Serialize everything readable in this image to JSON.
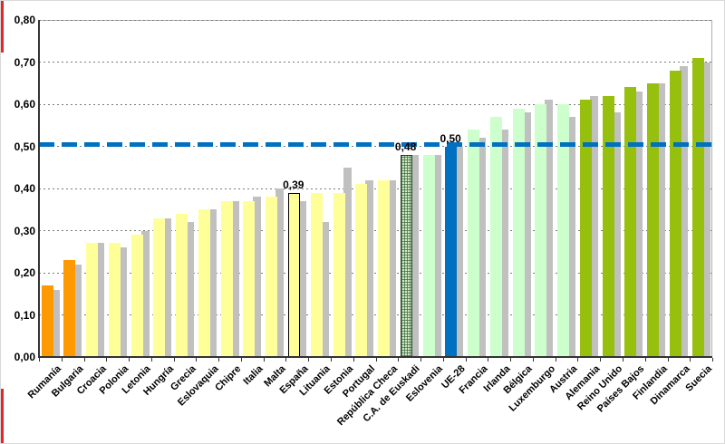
{
  "chart_data": {
    "type": "bar",
    "title": "",
    "xlabel": "",
    "ylabel": "",
    "ylim": [
      0,
      0.8
    ],
    "ytick_labels": [
      "0,00",
      "0,10",
      "0,20",
      "0,30",
      "0,40",
      "0,50",
      "0,60",
      "0,70",
      "0,80"
    ],
    "grid": "horizontal-dotted",
    "legend": "none",
    "categories": [
      "Rumanía",
      "Bulgaria",
      "Croacia",
      "Polonia",
      "Letonia",
      "Hungría",
      "Grecia",
      "Eslovaquia",
      "Chipre",
      "Italia",
      "Malta",
      "España",
      "Lituania",
      "Estonia",
      "Portugal",
      "República Checa",
      "C.A. de Euskadi",
      "Eslovenia",
      "UE-28",
      "Francia",
      "Irlanda",
      "Bélgica",
      "Luxemburgo",
      "Austria",
      "Alemania",
      "Reino Unido",
      "Países Bajos",
      "Finlandia",
      "Dinamarca",
      "Suecia"
    ],
    "series": [
      {
        "name": "principal",
        "values": [
          0.17,
          0.23,
          0.27,
          0.27,
          0.29,
          0.33,
          0.34,
          0.35,
          0.37,
          0.37,
          0.38,
          0.39,
          0.39,
          0.39,
          0.41,
          0.42,
          0.48,
          0.48,
          0.5,
          0.54,
          0.57,
          0.59,
          0.6,
          0.6,
          0.61,
          0.62,
          0.64,
          0.65,
          0.68,
          0.71
        ]
      },
      {
        "name": "secundaria-gris",
        "values": [
          0.16,
          0.22,
          0.27,
          0.26,
          0.3,
          0.33,
          0.32,
          0.35,
          0.37,
          0.38,
          0.4,
          0.37,
          0.32,
          0.45,
          0.42,
          0.42,
          0.48,
          0.48,
          0.5,
          0.52,
          0.54,
          0.58,
          0.61,
          0.57,
          0.62,
          0.58,
          0.63,
          0.65,
          0.69,
          0.7
        ]
      }
    ],
    "bar_styles": [
      "orange",
      "orange",
      "yellow",
      "yellow",
      "yellow",
      "yellow",
      "yellow",
      "yellow",
      "yellow",
      "yellow",
      "yellow",
      "outlined",
      "yellow",
      "yellow",
      "yellow",
      "yellow",
      "hatched",
      "mint",
      "blue",
      "mint",
      "mint",
      "mint",
      "mint",
      "mint",
      "green",
      "green",
      "green",
      "green",
      "green",
      "green"
    ],
    "annotations": [
      {
        "category_index": 11,
        "text": "0,39"
      },
      {
        "category_index": 16,
        "text": "0,48"
      },
      {
        "category_index": 18,
        "text": "0,50"
      }
    ],
    "reference_line": {
      "value": 0.505,
      "style": "dashed",
      "color": "#0070C0"
    }
  },
  "palette": {
    "orange": "#FF9900",
    "yellow": "#FFFF99",
    "outlined": "#FFFF99",
    "mint": "#CCFFCC",
    "blue": "#0070C0",
    "green": "#97BF0D",
    "hatched": "#CFE9C4",
    "secondary_gray": "#C0C0C0",
    "reference_blue": "#0070C0",
    "edge_marker_red": "#E8232A"
  }
}
